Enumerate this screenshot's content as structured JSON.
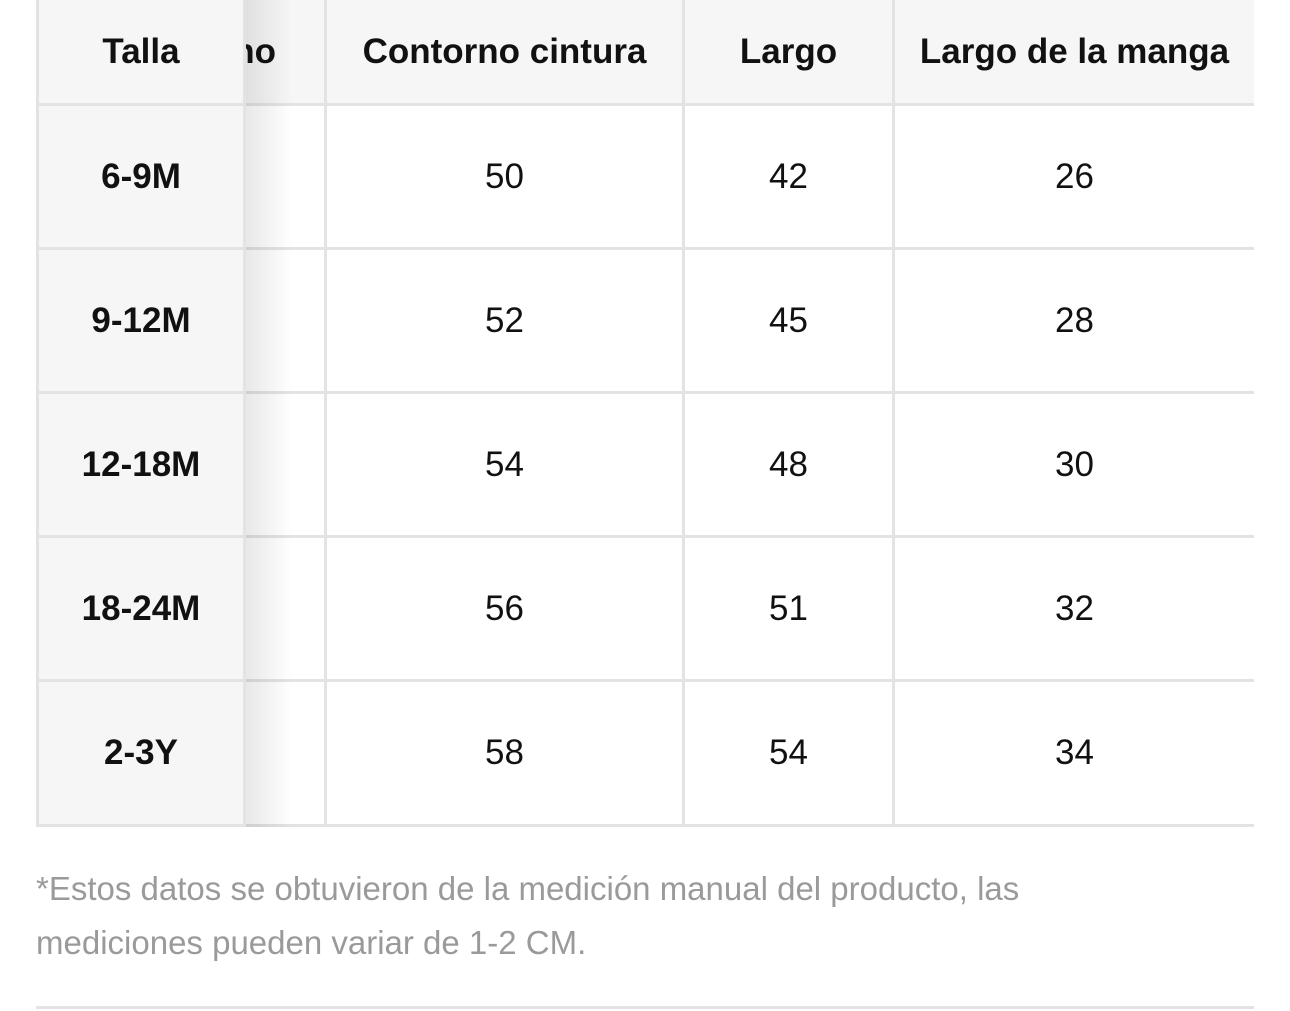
{
  "size_table": {
    "sticky_header": "Talla",
    "partial_header": "no",
    "headers": [
      "Contorno cintura",
      "Largo",
      "Largo de la manga"
    ],
    "sizes": [
      "6-9M",
      "9-12M",
      "12-18M",
      "18-24M",
      "2-3Y"
    ],
    "rows": [
      [
        "50",
        "42",
        "26"
      ],
      [
        "52",
        "45",
        "28"
      ],
      [
        "54",
        "48",
        "30"
      ],
      [
        "56",
        "51",
        "32"
      ],
      [
        "58",
        "54",
        "34"
      ]
    ]
  },
  "footnote": {
    "line1": "*Estos datos se obtuvieron de la medición manual del producto, las",
    "line2": "mediciones pueden variar de 1-2 CM."
  }
}
